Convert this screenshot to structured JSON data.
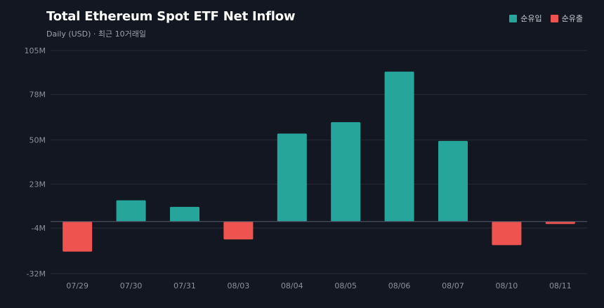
{
  "chart_data": {
    "type": "bar",
    "title": "Total Ethereum Spot ETF Net Inflow",
    "subtitle": "Daily (USD) · 최근 10거래일",
    "categories": [
      "07/29",
      "07/30",
      "07/31",
      "08/03",
      "08/04",
      "08/05",
      "08/06",
      "08/07",
      "08/10",
      "08/11"
    ],
    "values": [
      -18.5,
      13,
      9,
      -11,
      54,
      61,
      92,
      49.5,
      -14.5,
      -1.5
    ],
    "unit": "M",
    "yticks": [
      105,
      78,
      50,
      23,
      -4,
      -32
    ],
    "ytick_labels": [
      "105M",
      "78M",
      "50M",
      "23M",
      "-4M",
      "-32M"
    ],
    "ylim": [
      -32,
      105
    ],
    "grid": true,
    "legend_position": "top-right",
    "series_legend": [
      {
        "label": "순유입",
        "color": "#26a69a"
      },
      {
        "label": "순유출",
        "color": "#ef5350"
      }
    ],
    "colors": {
      "positive": "#26a69a",
      "negative": "#ef5350",
      "grid": "#262b36",
      "zero_line": "#4b5161",
      "tick_text": "#8b919e"
    }
  }
}
